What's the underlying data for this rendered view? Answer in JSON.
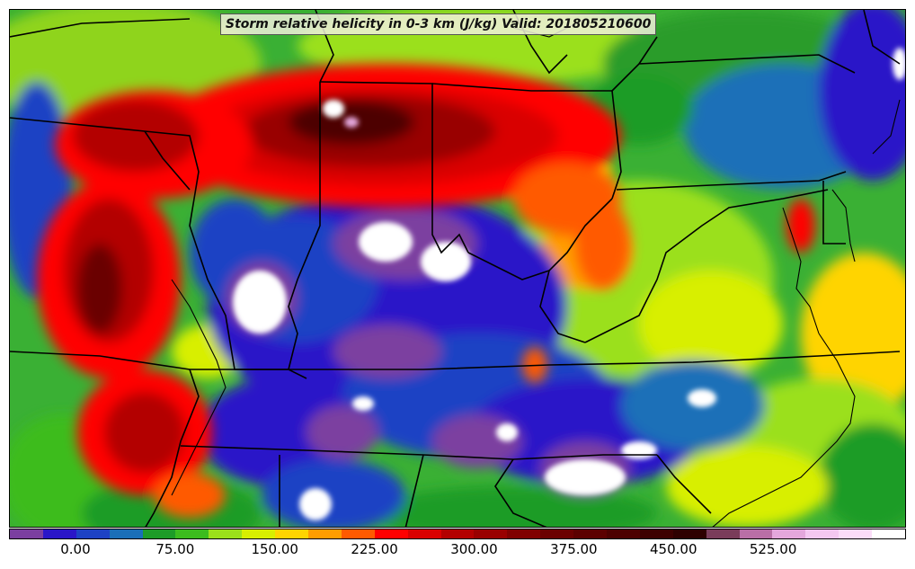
{
  "title": "Storm relative helicity in 0-3 km (J/kg) Valid: 201805210600",
  "colorbar": {
    "colors": [
      "#7b3fa0",
      "#2a16c8",
      "#1d42c4",
      "#1a6fb8",
      "#1d9c28",
      "#3cbc1e",
      "#9be01a",
      "#d8ef00",
      "#ffd400",
      "#ff9d00",
      "#ff5a00",
      "#ff0000",
      "#d90000",
      "#b30000",
      "#990000",
      "#800000",
      "#6b0000",
      "#5c0000",
      "#4d0000",
      "#3d0000",
      "#2e0000",
      "#7a3c5a",
      "#b96fa6",
      "#e4a7dc",
      "#f4c7f0",
      "#fbdcf8",
      "#ffffff"
    ],
    "tick_labels": [
      "0.00",
      "75.00",
      "150.00",
      "225.00",
      "300.00",
      "375.00",
      "450.00",
      "525.00"
    ],
    "tick_values": [
      0,
      75,
      150,
      225,
      300,
      375,
      450,
      525
    ],
    "min": -50,
    "max": 625
  }
}
